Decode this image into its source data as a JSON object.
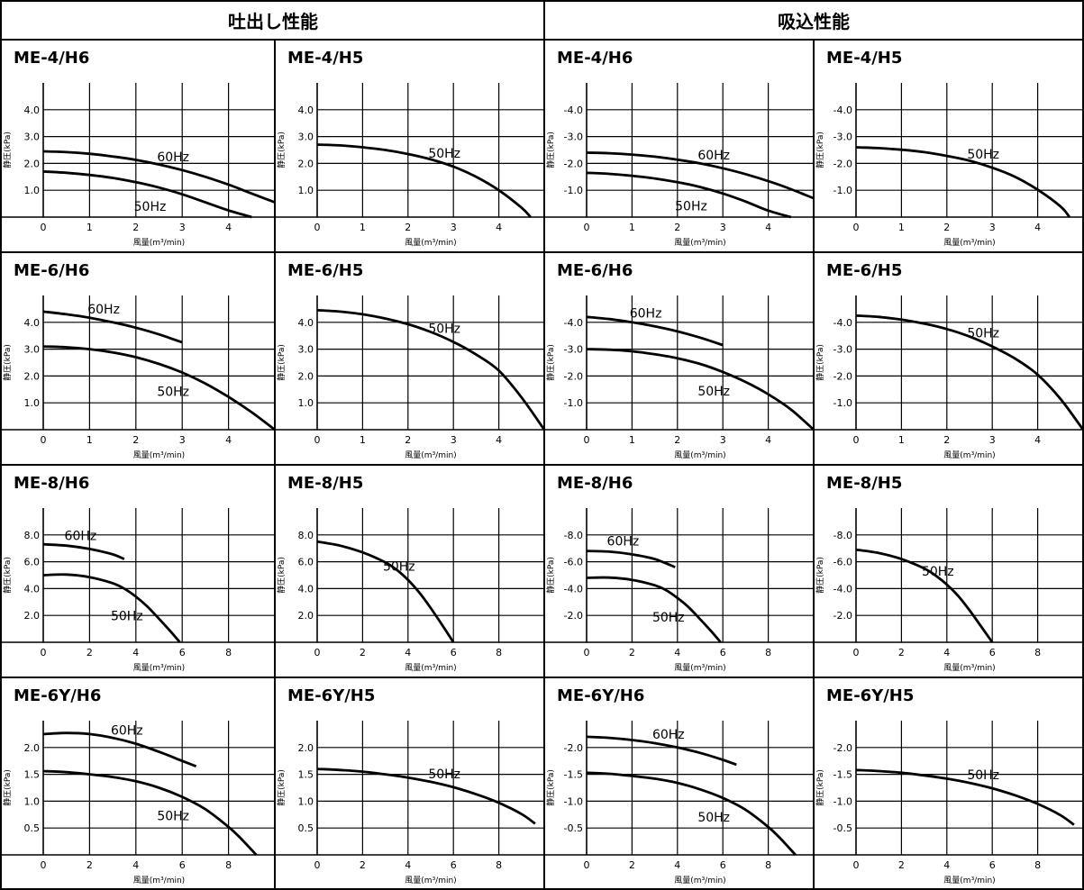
{
  "header": {
    "left": "吐出し性能",
    "right": "吸込性能"
  },
  "chart_data": [
    {
      "title": "ME-4/H6",
      "type": "line",
      "ylabel": "静圧(kPa)",
      "xlabel": "風量(m³/min)",
      "xticks": [
        "0",
        "1",
        "2",
        "3",
        "4"
      ],
      "xmax": 5,
      "yticks": [
        "1.0",
        "2.0",
        "3.0",
        "4.0"
      ],
      "ymax": 5,
      "series": [
        {
          "name": "60Hz",
          "x": [
            0,
            0.5,
            1,
            1.5,
            2,
            2.5,
            3,
            3.5,
            4,
            4.5,
            5
          ],
          "y": [
            2.45,
            2.42,
            2.36,
            2.26,
            2.13,
            1.96,
            1.75,
            1.5,
            1.21,
            0.88,
            0.55
          ]
        },
        {
          "name": "50Hz",
          "x": [
            0,
            0.5,
            1,
            1.5,
            2,
            2.5,
            3,
            3.5,
            4,
            4.5
          ],
          "y": [
            1.7,
            1.65,
            1.57,
            1.46,
            1.3,
            1.1,
            0.85,
            0.55,
            0.25,
            0
          ]
        }
      ]
    },
    {
      "title": "ME-4/H5",
      "type": "line",
      "ylabel": "静圧(kPa)",
      "xlabel": "風量(m³/min)",
      "xticks": [
        "0",
        "1",
        "2",
        "3",
        "4"
      ],
      "xmax": 5,
      "yticks": [
        "1.0",
        "2.0",
        "3.0",
        "4.0"
      ],
      "ymax": 5,
      "series": [
        {
          "name": "50Hz",
          "x": [
            0,
            0.5,
            1,
            1.5,
            2,
            2.5,
            3,
            3.5,
            4,
            4.5,
            4.7
          ],
          "y": [
            2.7,
            2.67,
            2.6,
            2.5,
            2.35,
            2.15,
            1.88,
            1.5,
            1.0,
            0.35,
            0
          ]
        }
      ]
    },
    {
      "title": "ME-4/H6",
      "type": "line",
      "ylabel": "静圧(kPa)",
      "xlabel": "風量(m³/min)",
      "xticks": [
        "0",
        "1",
        "2",
        "3",
        "4"
      ],
      "xmax": 5,
      "yticks": [
        "-1.0",
        "-2.0",
        "-3.0",
        "-4.0"
      ],
      "ymax": 5,
      "series": [
        {
          "name": "60Hz",
          "x": [
            0,
            0.5,
            1,
            1.5,
            2,
            2.5,
            3,
            3.5,
            4,
            4.5,
            5
          ],
          "y": [
            2.4,
            2.38,
            2.33,
            2.25,
            2.14,
            2.0,
            1.82,
            1.6,
            1.34,
            1.04,
            0.7
          ]
        },
        {
          "name": "50Hz",
          "x": [
            0,
            0.5,
            1,
            1.5,
            2,
            2.5,
            3,
            3.5,
            4,
            4.5
          ],
          "y": [
            1.65,
            1.61,
            1.54,
            1.44,
            1.3,
            1.12,
            0.88,
            0.58,
            0.24,
            0
          ]
        }
      ]
    },
    {
      "title": "ME-4/H5",
      "type": "line",
      "ylabel": "静圧(kPa)",
      "xlabel": "風量(m³/min)",
      "xticks": [
        "0",
        "1",
        "2",
        "3",
        "4"
      ],
      "xmax": 5,
      "yticks": [
        "-1.0",
        "-2.0",
        "-3.0",
        "-4.0"
      ],
      "ymax": 5,
      "series": [
        {
          "name": "50Hz",
          "x": [
            0,
            0.5,
            1,
            1.5,
            2,
            2.5,
            3,
            3.5,
            4,
            4.5,
            4.7
          ],
          "y": [
            2.6,
            2.57,
            2.51,
            2.42,
            2.28,
            2.1,
            1.84,
            1.5,
            1.02,
            0.4,
            0
          ]
        }
      ]
    },
    {
      "title": "ME-6/H6",
      "type": "line",
      "ylabel": "静圧(kPa)",
      "xlabel": "風量(m³/min)",
      "xticks": [
        "0",
        "1",
        "2",
        "3",
        "4"
      ],
      "xmax": 5,
      "yticks": [
        "1.0",
        "2.0",
        "3.0",
        "4.0"
      ],
      "ymax": 5,
      "series": [
        {
          "name": "60Hz",
          "x": [
            0,
            0.5,
            1,
            1.5,
            2,
            2.5,
            3
          ],
          "y": [
            4.4,
            4.3,
            4.17,
            4.0,
            3.8,
            3.55,
            3.25
          ]
        },
        {
          "name": "50Hz",
          "x": [
            0,
            0.5,
            1,
            1.5,
            2,
            2.5,
            3,
            3.5,
            4,
            4.5,
            5
          ],
          "y": [
            3.1,
            3.07,
            3.0,
            2.88,
            2.7,
            2.45,
            2.13,
            1.72,
            1.22,
            0.65,
            0
          ]
        }
      ]
    },
    {
      "title": "ME-6/H5",
      "type": "line",
      "ylabel": "静圧(kPa)",
      "xlabel": "風量(m³/min)",
      "xticks": [
        "0",
        "1",
        "2",
        "3",
        "4"
      ],
      "xmax": 5,
      "yticks": [
        "1.0",
        "2.0",
        "3.0",
        "4.0"
      ],
      "ymax": 5,
      "series": [
        {
          "name": "50Hz",
          "x": [
            0,
            0.5,
            1,
            1.5,
            2,
            2.5,
            3,
            3.5,
            4,
            4.5,
            5
          ],
          "y": [
            4.45,
            4.4,
            4.3,
            4.14,
            3.93,
            3.64,
            3.27,
            2.8,
            2.2,
            1.2,
            0
          ]
        }
      ]
    },
    {
      "title": "ME-6/H6",
      "type": "line",
      "ylabel": "静圧(kPa)",
      "xlabel": "風量(m³/min)",
      "xticks": [
        "0",
        "1",
        "2",
        "3",
        "4"
      ],
      "xmax": 5,
      "yticks": [
        "-1.0",
        "-2.0",
        "-3.0",
        "-4.0"
      ],
      "ymax": 5,
      "series": [
        {
          "name": "60Hz",
          "x": [
            0,
            0.5,
            1,
            1.5,
            2,
            2.5,
            3
          ],
          "y": [
            4.2,
            4.12,
            4.0,
            3.85,
            3.66,
            3.43,
            3.15
          ]
        },
        {
          "name": "50Hz",
          "x": [
            0,
            0.5,
            1,
            1.5,
            2,
            2.5,
            3,
            3.5,
            4,
            4.5,
            5
          ],
          "y": [
            3.0,
            2.98,
            2.92,
            2.81,
            2.66,
            2.45,
            2.15,
            1.78,
            1.32,
            0.75,
            0
          ]
        }
      ]
    },
    {
      "title": "ME-6/H5",
      "type": "line",
      "ylabel": "静圧(kPa)",
      "xlabel": "風量(m³/min)",
      "xticks": [
        "0",
        "1",
        "2",
        "3",
        "4"
      ],
      "xmax": 5,
      "yticks": [
        "-1.0",
        "-2.0",
        "-3.0",
        "-4.0"
      ],
      "ymax": 5,
      "series": [
        {
          "name": "50Hz",
          "x": [
            0,
            0.5,
            1,
            1.5,
            2,
            2.5,
            3,
            3.5,
            4,
            4.5,
            5
          ],
          "y": [
            4.25,
            4.2,
            4.1,
            3.95,
            3.75,
            3.47,
            3.1,
            2.65,
            2.05,
            1.15,
            0
          ]
        }
      ]
    },
    {
      "title": "ME-8/H6",
      "type": "line",
      "ylabel": "静圧(kPa)",
      "xlabel": "風量(m³/min)",
      "xticks": [
        "0",
        "2",
        "4",
        "6",
        "8"
      ],
      "xmax": 10,
      "yticks": [
        "2.0",
        "4.0",
        "6.0",
        "8.0"
      ],
      "ymax": 10,
      "series": [
        {
          "name": "60Hz",
          "x": [
            0,
            1,
            2,
            3,
            3.5
          ],
          "y": [
            7.3,
            7.2,
            6.95,
            6.55,
            6.2
          ]
        },
        {
          "name": "50Hz",
          "x": [
            0,
            1,
            2,
            3,
            3.5,
            4,
            4.5,
            5,
            5.5,
            5.9
          ],
          "y": [
            5.0,
            5.05,
            4.85,
            4.4,
            4.0,
            3.4,
            2.65,
            1.75,
            0.8,
            0
          ]
        }
      ]
    },
    {
      "title": "ME-8/H5",
      "type": "line",
      "ylabel": "静圧(kPa)",
      "xlabel": "風量(m³/min)",
      "xticks": [
        "0",
        "2",
        "4",
        "6",
        "8"
      ],
      "xmax": 10,
      "yticks": [
        "2.0",
        "4.0",
        "6.0",
        "8.0"
      ],
      "ymax": 10,
      "series": [
        {
          "name": "50Hz",
          "x": [
            0,
            1,
            2,
            3,
            3.5,
            4,
            4.5,
            5,
            5.5,
            6
          ],
          "y": [
            7.5,
            7.2,
            6.7,
            5.95,
            5.4,
            4.65,
            3.7,
            2.55,
            1.3,
            0
          ]
        }
      ]
    },
    {
      "title": "ME-8/H6",
      "type": "line",
      "ylabel": "静圧(kPa)",
      "xlabel": "風量(m³/min)",
      "xticks": [
        "0",
        "2",
        "4",
        "6",
        "8"
      ],
      "xmax": 10,
      "yticks": [
        "-2.0",
        "-4.0",
        "-6.0",
        "-8.0"
      ],
      "ymax": 10,
      "series": [
        {
          "name": "60Hz",
          "x": [
            0,
            1,
            2,
            3,
            3.9
          ],
          "y": [
            6.8,
            6.75,
            6.55,
            6.2,
            5.6
          ]
        },
        {
          "name": "50Hz",
          "x": [
            0,
            1,
            2,
            3,
            3.5,
            4,
            4.5,
            5,
            5.5,
            5.9
          ],
          "y": [
            4.8,
            4.82,
            4.65,
            4.25,
            3.88,
            3.3,
            2.6,
            1.72,
            0.8,
            0
          ]
        }
      ]
    },
    {
      "title": "ME-8/H5",
      "type": "line",
      "ylabel": "静圧(kPa)",
      "xlabel": "風量(m³/min)",
      "xticks": [
        "0",
        "2",
        "4",
        "6",
        "8"
      ],
      "xmax": 10,
      "yticks": [
        "-2.0",
        "-4.0",
        "-6.0",
        "-8.0"
      ],
      "ymax": 10,
      "series": [
        {
          "name": "50Hz",
          "x": [
            0,
            1,
            2,
            3,
            3.5,
            4,
            4.5,
            5,
            5.5,
            6
          ],
          "y": [
            6.9,
            6.65,
            6.2,
            5.5,
            4.98,
            4.3,
            3.45,
            2.38,
            1.2,
            0
          ]
        }
      ]
    },
    {
      "title": "ME-6Y/H6",
      "type": "line",
      "ylabel": "静圧(kPa)",
      "xlabel": "風量(m³/min)",
      "xticks": [
        "0",
        "2",
        "4",
        "6",
        "8"
      ],
      "xmax": 10,
      "yticks": [
        "0.5",
        "1.0",
        "1.5",
        "2.0"
      ],
      "ymax": 2.5,
      "series": [
        {
          "name": "60Hz",
          "x": [
            0,
            1,
            2,
            3,
            4,
            5,
            6,
            6.6
          ],
          "y": [
            2.25,
            2.27,
            2.25,
            2.18,
            2.07,
            1.92,
            1.75,
            1.65
          ]
        },
        {
          "name": "50Hz",
          "x": [
            0,
            1,
            2,
            3,
            4,
            5,
            6,
            7,
            8,
            8.5,
            9.2
          ],
          "y": [
            1.56,
            1.54,
            1.5,
            1.45,
            1.37,
            1.25,
            1.08,
            0.85,
            0.52,
            0.32,
            0
          ]
        }
      ]
    },
    {
      "title": "ME-6Y/H5",
      "type": "line",
      "ylabel": "静圧(kPa)",
      "xlabel": "風量(m³/min)",
      "xticks": [
        "0",
        "2",
        "4",
        "6",
        "8"
      ],
      "xmax": 10,
      "yticks": [
        "0.5",
        "1.0",
        "1.5",
        "2.0"
      ],
      "ymax": 2.5,
      "series": [
        {
          "name": "50Hz",
          "x": [
            0,
            1,
            2,
            3,
            4,
            5,
            6,
            7,
            8,
            9,
            9.6
          ],
          "y": [
            1.6,
            1.58,
            1.55,
            1.5,
            1.44,
            1.36,
            1.26,
            1.13,
            0.97,
            0.76,
            0.58
          ]
        }
      ]
    },
    {
      "title": "ME-6Y/H6",
      "type": "line",
      "ylabel": "静圧(kPa)",
      "xlabel": "風量(m³/min)",
      "xticks": [
        "0",
        "2",
        "4",
        "6",
        "8"
      ],
      "xmax": 10,
      "yticks": [
        "-0.5",
        "-1.0",
        "-1.5",
        "-2.0"
      ],
      "ymax": 2.5,
      "series": [
        {
          "name": "60Hz",
          "x": [
            0,
            1,
            2,
            3,
            4,
            5,
            6,
            6.6
          ],
          "y": [
            2.2,
            2.18,
            2.14,
            2.08,
            2.0,
            1.9,
            1.77,
            1.68
          ]
        },
        {
          "name": "50Hz",
          "x": [
            0,
            1,
            2,
            3,
            4,
            5,
            6,
            7,
            8,
            8.5,
            9.2
          ],
          "y": [
            1.53,
            1.51,
            1.47,
            1.42,
            1.34,
            1.22,
            1.06,
            0.84,
            0.52,
            0.32,
            0
          ]
        }
      ]
    },
    {
      "title": "ME-6Y/H5",
      "type": "line",
      "ylabel": "静圧(kPa)",
      "xlabel": "風量(m³/min)",
      "xticks": [
        "0",
        "2",
        "4",
        "6",
        "8"
      ],
      "xmax": 10,
      "yticks": [
        "-0.5",
        "-1.0",
        "-1.5",
        "-2.0"
      ],
      "ymax": 2.5,
      "series": [
        {
          "name": "50Hz",
          "x": [
            0,
            1,
            2,
            3,
            4,
            5,
            6,
            7,
            8,
            9,
            9.6
          ],
          "y": [
            1.58,
            1.56,
            1.53,
            1.48,
            1.42,
            1.34,
            1.24,
            1.11,
            0.95,
            0.74,
            0.56
          ]
        }
      ]
    }
  ]
}
